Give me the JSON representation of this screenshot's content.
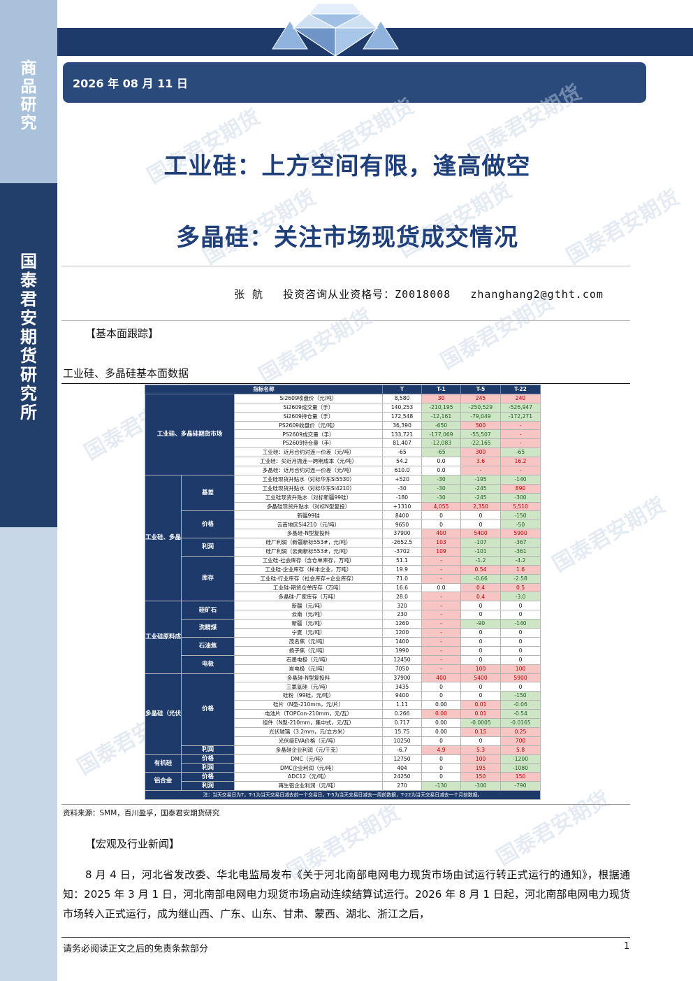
{
  "sidebar": {
    "top_label": "商品研究",
    "org_label": "国泰君安期货研究所"
  },
  "header": {
    "date": "2026 年 08 月 11 日",
    "watermark": "国泰君安期货"
  },
  "titles": {
    "main": "工业硅：上方空间有限，逢高做空",
    "sub": "多晶硅：关注市场现货成交情况"
  },
  "author": {
    "name": "张    航",
    "license": "投资咨询从业资格号：Z0018008",
    "email": "zhanghang2@gtht.com"
  },
  "sections": {
    "fundamentals": "【基本面跟踪】",
    "table_caption": "工业硅、多晶硅基本面数据",
    "news": "【宏观及行业新闻】"
  },
  "table": {
    "headers": [
      "指标名称",
      "T",
      "T-1",
      "T-5",
      "T-22"
    ],
    "rows": [
      {
        "cat": "工业硅、多晶硅期货市场",
        "catspan": 9,
        "name": "Si2609收盘价（元/吨）",
        "t": "8,580",
        "v": [
          [
            "30",
            "r"
          ],
          [
            "245",
            "r"
          ],
          [
            "240",
            "r"
          ]
        ]
      },
      {
        "name": "Si2609成交量（手）",
        "t": "140,253",
        "v": [
          [
            "-210,195",
            "g"
          ],
          [
            "-250,529",
            "g"
          ],
          [
            "-526,947",
            "g"
          ]
        ]
      },
      {
        "name": "Si2609持仓量（手）",
        "t": "172,548",
        "v": [
          [
            "-12,161",
            "g"
          ],
          [
            "-79,049",
            "g"
          ],
          [
            "-172,271",
            "g"
          ]
        ]
      },
      {
        "name": "PS2609收盘价（元/吨）",
        "t": "36,390",
        "v": [
          [
            "-650",
            "g"
          ],
          [
            "500",
            "r"
          ],
          [
            "-",
            "r"
          ]
        ]
      },
      {
        "name": "PS2609成交量（手）",
        "t": "133,721",
        "v": [
          [
            "-177,069",
            "g"
          ],
          [
            "-55,507",
            "g"
          ],
          [
            "-",
            "r"
          ]
        ]
      },
      {
        "name": "PS2609持仓量（手）",
        "t": "81,407",
        "v": [
          [
            "-12,083",
            "g"
          ],
          [
            "-22,165",
            "g"
          ],
          [
            "-",
            "r"
          ]
        ]
      },
      {
        "name": "工业硅：近月合约对连一价差（元/吨）",
        "t": "-65",
        "v": [
          [
            "-65",
            "g"
          ],
          [
            "300",
            "r"
          ],
          [
            "-65",
            "g"
          ]
        ]
      },
      {
        "name": "工业硅：买近月抛连一跨期成本（元/吨）",
        "t": "54.2",
        "v": [
          [
            "0.0",
            "n"
          ],
          [
            "3.6",
            "r"
          ],
          [
            "16.2",
            "r"
          ]
        ]
      },
      {
        "name": "多晶硅：近月合约对连一价差（元/吨）",
        "t": "610.0",
        "v": [
          [
            "0.0",
            "n"
          ],
          [
            "-",
            "r"
          ],
          [
            "-",
            "r"
          ]
        ]
      },
      {
        "cat": "工业硅、多晶硅",
        "catspan": 14,
        "grp": "基差",
        "grpspan": 4,
        "name": "工业硅现货升贴水（对标华东Si5530）",
        "t": "+520",
        "v": [
          [
            "-30",
            "g"
          ],
          [
            "-195",
            "g"
          ],
          [
            "-140",
            "g"
          ]
        ]
      },
      {
        "name": "工业硅现货升贴水（对标华东Si4210）",
        "t": "-30",
        "v": [
          [
            "-30",
            "g"
          ],
          [
            "-245",
            "g"
          ],
          [
            "890",
            "r"
          ]
        ]
      },
      {
        "name": "工业硅现货升贴水（对标新疆99硅）",
        "t": "-180",
        "v": [
          [
            "-30",
            "g"
          ],
          [
            "-245",
            "g"
          ],
          [
            "-300",
            "g"
          ]
        ]
      },
      {
        "name": "多晶硅现货升贴水（对标N型复投）",
        "t": "+1310",
        "v": [
          [
            "4,055",
            "r"
          ],
          [
            "2,350",
            "r"
          ],
          [
            "5,510",
            "r"
          ]
        ]
      },
      {
        "grp": "价格",
        "grpspan": 3,
        "name": "新疆99硅",
        "t": "8400",
        "v": [
          [
            "0",
            "n"
          ],
          [
            "0",
            "n"
          ],
          [
            "-150",
            "g"
          ]
        ]
      },
      {
        "name": "云南地区Si4210（元/吨）",
        "t": "9650",
        "v": [
          [
            "0",
            "n"
          ],
          [
            "0",
            "n"
          ],
          [
            "-50",
            "g"
          ]
        ]
      },
      {
        "name": "多晶硅-N型复投料",
        "t": "37900",
        "v": [
          [
            "400",
            "r"
          ],
          [
            "5400",
            "r"
          ],
          [
            "5900",
            "r"
          ]
        ]
      },
      {
        "grp": "利润",
        "grpspan": 2,
        "name": "硅厂利润（新疆新标553#，元/吨）",
        "t": "-2652.5",
        "v": [
          [
            "103",
            "r"
          ],
          [
            "-107",
            "g"
          ],
          [
            "-367",
            "g"
          ]
        ]
      },
      {
        "name": "硅厂利润（云南新标553#，元/吨）",
        "t": "-3702",
        "v": [
          [
            "109",
            "r"
          ],
          [
            "-101",
            "g"
          ],
          [
            "-361",
            "g"
          ]
        ]
      },
      {
        "grp": "库存",
        "grpspan": 5,
        "name": "工业硅-社会库存（含仓单库存，万吨）",
        "t": "51.1",
        "v": [
          [
            "-",
            "r"
          ],
          [
            "-1.2",
            "g"
          ],
          [
            "-4.2",
            "g"
          ]
        ]
      },
      {
        "name": "工业硅-企业库存（样本企业，万吨）",
        "t": "19.9",
        "v": [
          [
            "-",
            "r"
          ],
          [
            "0.54",
            "r"
          ],
          [
            "1.6",
            "r"
          ]
        ]
      },
      {
        "name": "工业硅-行业库存（社会库存+企业库存）",
        "t": "71.0",
        "v": [
          [
            "-",
            "r"
          ],
          [
            "-0.66",
            "g"
          ],
          [
            "-2.58",
            "g"
          ]
        ]
      },
      {
        "name": "工业硅-期货仓单库存（万吨）",
        "t": "16.6",
        "v": [
          [
            "0.0",
            "n"
          ],
          [
            "0.4",
            "r"
          ],
          [
            "0.5",
            "r"
          ]
        ]
      },
      {
        "name": "多晶硅-厂家库存（万吨）",
        "t": "28.0",
        "v": [
          [
            "-",
            "r"
          ],
          [
            "0.4",
            "r"
          ],
          [
            "-3.0",
            "g"
          ]
        ]
      },
      {
        "cat": "工业硅原料成本",
        "catspan": 8,
        "grp": "硅矿石",
        "grpspan": 2,
        "name": "新疆（元/吨）",
        "t": "320",
        "v": [
          [
            "-",
            "r"
          ],
          [
            "0",
            "n"
          ],
          [
            "0",
            "n"
          ]
        ]
      },
      {
        "name": "云南（元/吨）",
        "t": "230",
        "v": [
          [
            "-",
            "r"
          ],
          [
            "0",
            "n"
          ],
          [
            "0",
            "n"
          ]
        ]
      },
      {
        "grp": "洗精煤",
        "grpspan": 2,
        "name": "新疆（元/吨）",
        "t": "1260",
        "v": [
          [
            "-",
            "r"
          ],
          [
            "-90",
            "g"
          ],
          [
            "-140",
            "g"
          ]
        ]
      },
      {
        "name": "宁夏（元/吨）",
        "t": "1200",
        "v": [
          [
            "-",
            "r"
          ],
          [
            "0",
            "n"
          ],
          [
            "0",
            "n"
          ]
        ]
      },
      {
        "grp": "石油焦",
        "grpspan": 2,
        "name": "茂名焦（元/吨）",
        "t": "1400",
        "v": [
          [
            "-",
            "r"
          ],
          [
            "0",
            "n"
          ],
          [
            "0",
            "n"
          ]
        ]
      },
      {
        "name": "扬子焦（元/吨）",
        "t": "1990",
        "v": [
          [
            "-",
            "r"
          ],
          [
            "0",
            "n"
          ],
          [
            "0",
            "n"
          ]
        ]
      },
      {
        "grp": "电极",
        "grpspan": 2,
        "name": "石墨电极（元/吨）",
        "t": "12450",
        "v": [
          [
            "-",
            "r"
          ],
          [
            "0",
            "n"
          ],
          [
            "0",
            "n"
          ]
        ]
      },
      {
        "name": "炭电极（元/吨）",
        "t": "7050",
        "v": [
          [
            "-",
            "r"
          ],
          [
            "100",
            "r"
          ],
          [
            "100",
            "r"
          ]
        ]
      },
      {
        "cat": "多晶硅（光伏）",
        "catspan": 9,
        "grp": "价格",
        "grpspan": 8,
        "name": "多晶硅-N型复投料",
        "t": "37900",
        "v": [
          [
            "400",
            "r"
          ],
          [
            "5400",
            "r"
          ],
          [
            "5900",
            "r"
          ]
        ]
      },
      {
        "name": "三氯氢硅（元/吨）",
        "t": "3435",
        "v": [
          [
            "0",
            "n"
          ],
          [
            "0",
            "n"
          ],
          [
            "0",
            "n"
          ]
        ]
      },
      {
        "name": "硅粉（99硅，元/吨）",
        "t": "9400",
        "v": [
          [
            "0",
            "n"
          ],
          [
            "0",
            "n"
          ],
          [
            "-150",
            "g"
          ]
        ]
      },
      {
        "name": "硅片（N型-210mm，元/片）",
        "t": "1.11",
        "v": [
          [
            "0.00",
            "n"
          ],
          [
            "0.01",
            "r"
          ],
          [
            "-0.06",
            "g"
          ]
        ]
      },
      {
        "name": "电池片（TOPCon-210mm，元/瓦）",
        "t": "0.266",
        "v": [
          [
            "0.00",
            "r"
          ],
          [
            "0.01",
            "r"
          ],
          [
            "-0.54",
            "g"
          ]
        ]
      },
      {
        "name": "组件（N型-210mm，集中式，元/瓦）",
        "t": "0.717",
        "v": [
          [
            "0.00",
            "n"
          ],
          [
            "-0.0005",
            "g"
          ],
          [
            "-0.0165",
            "g"
          ]
        ]
      },
      {
        "name": "光伏玻璃（3.2mm，元/立方米）",
        "t": "15.75",
        "v": [
          [
            "0.00",
            "n"
          ],
          [
            "0.15",
            "r"
          ],
          [
            "0.25",
            "r"
          ]
        ]
      },
      {
        "name": "光伏级EVA价格（元/吨）",
        "t": "10250",
        "v": [
          [
            "0",
            "n"
          ],
          [
            "0",
            "n"
          ],
          [
            "700",
            "r"
          ]
        ]
      },
      {
        "grp": "利润",
        "grpspan": 1,
        "name": "多晶硅企业利润（元/千克）",
        "t": "-6.7",
        "v": [
          [
            "4.9",
            "r"
          ],
          [
            "5.3",
            "r"
          ],
          [
            "5.8",
            "r"
          ]
        ]
      },
      {
        "cat": "有机硅",
        "catspan": 2,
        "grp": "价格",
        "grpspan": 1,
        "name": "DMC（元/吨）",
        "t": "12750",
        "v": [
          [
            "0",
            "n"
          ],
          [
            "100",
            "r"
          ],
          [
            "-1200",
            "g"
          ]
        ]
      },
      {
        "grp": "利润",
        "grpspan": 1,
        "name": "DMC企业利润（元/吨）",
        "t": "404",
        "v": [
          [
            "0",
            "n"
          ],
          [
            "195",
            "r"
          ],
          [
            "-1080",
            "g"
          ]
        ]
      },
      {
        "cat": "铝合金",
        "catspan": 2,
        "grp": "价格",
        "grpspan": 1,
        "name": "ADC12（元/吨）",
        "t": "24250",
        "v": [
          [
            "0",
            "n"
          ],
          [
            "150",
            "r"
          ],
          [
            "150",
            "r"
          ]
        ]
      },
      {
        "grp": "利润",
        "grpspan": 1,
        "name": "再生铝企业利润（元/吨）",
        "t": "270",
        "v": [
          [
            "-130",
            "g"
          ],
          [
            "-300",
            "g"
          ],
          [
            "-790",
            "g"
          ]
        ]
      }
    ],
    "note": "注：当天交易日为T，T-1为当天交易日减去前一个交易日，T-5为当天交易日减去一周前数据，T-22为当天交易日减去一个月前数据。"
  },
  "source": "资料来源：SMM，百川盈孚，国泰君安期货研究",
  "news_paragraph": "8 月 4 日，河北省发改委、华北电监局发布《关于河北南部电网电力现货市场由试运行转正式运行的通知》，根据通知：2025 年 3 月 1 日，河北南部电网电力现货市场启动连续结算试运行。2026 年 8 月 1 日起，河北南部电网电力现货市场转入正式运行，成为继山西、广东、山东、甘肃、蒙西、湖北、浙江之后，",
  "footer": {
    "disclaimer": "请务必阅读正文之后的免责条款部分",
    "page": "1"
  },
  "colors": {
    "navy": "#1e3a6b",
    "title_blue": "#1f3f7a",
    "up_red": "#c00000",
    "down_green": "#1d5d1d"
  }
}
